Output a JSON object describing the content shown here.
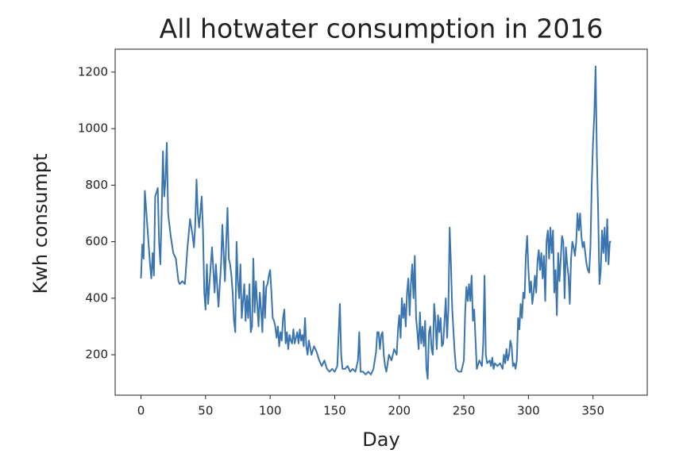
{
  "chart_data": {
    "type": "line",
    "title": "All hotwater consumption in 2016",
    "x_label": "Day",
    "y_label": "Kwh consumpt",
    "x": [
      0,
      1,
      2,
      3,
      5,
      7,
      8,
      9,
      10,
      11,
      13,
      14,
      15,
      16,
      17,
      18,
      19,
      20,
      21,
      22,
      23,
      25,
      27,
      28,
      29,
      30,
      32,
      34,
      36,
      38,
      40,
      41,
      42,
      43,
      44,
      45,
      47,
      48,
      49,
      50,
      51,
      52,
      53,
      55,
      57,
      58,
      60,
      62,
      63,
      64,
      65,
      66,
      67,
      68,
      69,
      70,
      71,
      72,
      73,
      74,
      75,
      76,
      77,
      78,
      80,
      81,
      82,
      83,
      84,
      85,
      86,
      87,
      88,
      89,
      90,
      91,
      92,
      93,
      94,
      95,
      96,
      97,
      98,
      99,
      100,
      101,
      102,
      103,
      104,
      105,
      106,
      107,
      108,
      109,
      110,
      111,
      112,
      113,
      114,
      115,
      116,
      117,
      118,
      119,
      120,
      121,
      122,
      123,
      124,
      125,
      126,
      127,
      128,
      129,
      130,
      132,
      134,
      136,
      138,
      140,
      142,
      144,
      146,
      148,
      150,
      152,
      154,
      155,
      156,
      158,
      160,
      162,
      164,
      166,
      168,
      169,
      170,
      172,
      174,
      176,
      178,
      180,
      182,
      183,
      184,
      185,
      186,
      187,
      188,
      189,
      190,
      192,
      194,
      196,
      198,
      199,
      200,
      201,
      202,
      203,
      204,
      205,
      206,
      207,
      208,
      209,
      210,
      211,
      212,
      213,
      214,
      215,
      216,
      217,
      218,
      219,
      220,
      221,
      222,
      223,
      224,
      225,
      226,
      227,
      228,
      229,
      230,
      231,
      232,
      233,
      234,
      235,
      236,
      237,
      238,
      239,
      240,
      241,
      242,
      243,
      244,
      246,
      248,
      250,
      251,
      252,
      253,
      254,
      255,
      256,
      257,
      258,
      260,
      262,
      264,
      265,
      266,
      267,
      268,
      270,
      271,
      272,
      273,
      274,
      276,
      278,
      280,
      281,
      282,
      283,
      284,
      285,
      286,
      287,
      288,
      289,
      290,
      291,
      292,
      293,
      294,
      295,
      296,
      297,
      298,
      299,
      300,
      301,
      302,
      303,
      304,
      305,
      306,
      307,
      308,
      309,
      310,
      311,
      312,
      313,
      314,
      315,
      316,
      317,
      318,
      319,
      320,
      321,
      322,
      323,
      324,
      325,
      326,
      327,
      328,
      329,
      330,
      331,
      332,
      333,
      334,
      335,
      336,
      337,
      338,
      339,
      340,
      341,
      342,
      343,
      344,
      345,
      346,
      347,
      348,
      349,
      350,
      351,
      352,
      353,
      354,
      355,
      356,
      357,
      358,
      359,
      360,
      361,
      362,
      363,
      364
    ],
    "series": [
      {
        "color": "#3b75af",
        "values": [
          470,
          590,
          540,
          780,
          650,
          520,
          470,
          560,
          480,
          760,
          790,
          600,
          520,
          700,
          920,
          760,
          820,
          950,
          700,
          660,
          620,
          560,
          540,
          500,
          460,
          450,
          460,
          450,
          580,
          680,
          620,
          580,
          660,
          820,
          700,
          650,
          760,
          640,
          420,
          360,
          520,
          380,
          450,
          580,
          420,
          520,
          370,
          520,
          660,
          560,
          460,
          600,
          720,
          540,
          520,
          480,
          420,
          320,
          280,
          600,
          460,
          400,
          520,
          330,
          450,
          320,
          410,
          330,
          450,
          280,
          300,
          540,
          350,
          460,
          380,
          300,
          420,
          360,
          280,
          460,
          330,
          440,
          450,
          480,
          500,
          420,
          330,
          320,
          300,
          260,
          300,
          230,
          280,
          250,
          330,
          360,
          240,
          280,
          220,
          270,
          250,
          240,
          290,
          240,
          260,
          280,
          240,
          290,
          250,
          270,
          230,
          330,
          230,
          200,
          250,
          200,
          230,
          210,
          180,
          160,
          180,
          150,
          140,
          150,
          140,
          160,
          380,
          200,
          150,
          150,
          160,
          140,
          150,
          140,
          180,
          280,
          140,
          140,
          130,
          140,
          130,
          150,
          210,
          280,
          280,
          220,
          270,
          280,
          200,
          160,
          140,
          200,
          180,
          220,
          200,
          290,
          340,
          260,
          400,
          330,
          380,
          300,
          420,
          470,
          340,
          450,
          520,
          400,
          550,
          330,
          280,
          220,
          350,
          240,
          300,
          230,
          320,
          150,
          115,
          280,
          300,
          220,
          200,
          380,
          320,
          220,
          340,
          280,
          330,
          230,
          240,
          320,
          400,
          260,
          360,
          650,
          520,
          360,
          280,
          200,
          150,
          140,
          140,
          180,
          350,
          440,
          390,
          450,
          390,
          480,
          320,
          360,
          150,
          180,
          160,
          240,
          480,
          200,
          170,
          180,
          160,
          190,
          150,
          170,
          160,
          170,
          150,
          200,
          170,
          220,
          180,
          200,
          250,
          230,
          160,
          170,
          150,
          180,
          330,
          290,
          380,
          330,
          420,
          400,
          550,
          620,
          500,
          420,
          460,
          380,
          420,
          480,
          420,
          530,
          570,
          500,
          560,
          470,
          550,
          390,
          600,
          640,
          540,
          650,
          560,
          640,
          420,
          500,
          340,
          560,
          460,
          540,
          620,
          600,
          400,
          580,
          520,
          480,
          380,
          540,
          600,
          580,
          550,
          600,
          700,
          640,
          700,
          620,
          580,
          600,
          560,
          520,
          500,
          490,
          580,
          800,
          950,
          1050,
          1220,
          900,
          700,
          450,
          500,
          640,
          560,
          650,
          530,
          680,
          520,
          600,
          600
        ]
      }
    ],
    "xlim": [
      -20,
      392
    ],
    "ylim": [
      57,
      1281
    ],
    "xticks": [
      0,
      50,
      100,
      150,
      200,
      250,
      300,
      350
    ],
    "yticks": [
      200,
      400,
      600,
      800,
      1000,
      1200
    ]
  }
}
